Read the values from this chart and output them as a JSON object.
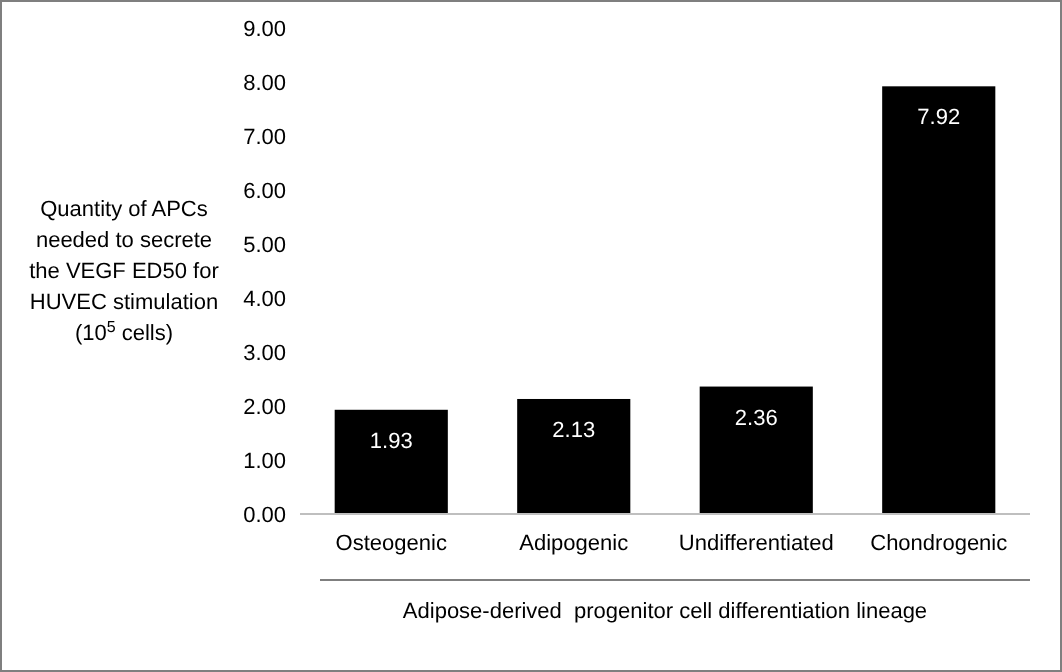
{
  "chart_data": {
    "type": "bar",
    "ylabel": "Quantity of APCs needed to secrete the VEGF ED50 for HUVEC stimulation (10$^{5}$ cells)",
    "xlabel": "Adipose-derived  progenitor cell differentiation lineage",
    "categories": [
      "Osteogenic",
      "Adipogenic",
      "Undifferentiated",
      "Chondrogenic"
    ],
    "values": [
      1.93,
      2.13,
      2.36,
      7.92
    ],
    "color": "#000000",
    "data_labels": true,
    "ylim": [
      0,
      9
    ],
    "yticks": [
      {
        "value": 0,
        "label": "0.00"
      },
      {
        "value": 1,
        "label": "1.00"
      },
      {
        "value": 2,
        "label": "2.00"
      },
      {
        "value": 3,
        "label": "3.00"
      },
      {
        "value": 4,
        "label": "4.00"
      },
      {
        "value": 5,
        "label": "5.00"
      },
      {
        "value": 6,
        "label": "6.00"
      },
      {
        "value": 7,
        "label": "7.00"
      },
      {
        "value": 8,
        "label": "8.00"
      },
      {
        "value": 9,
        "label": "9.00"
      }
    ],
    "grid": false
  }
}
